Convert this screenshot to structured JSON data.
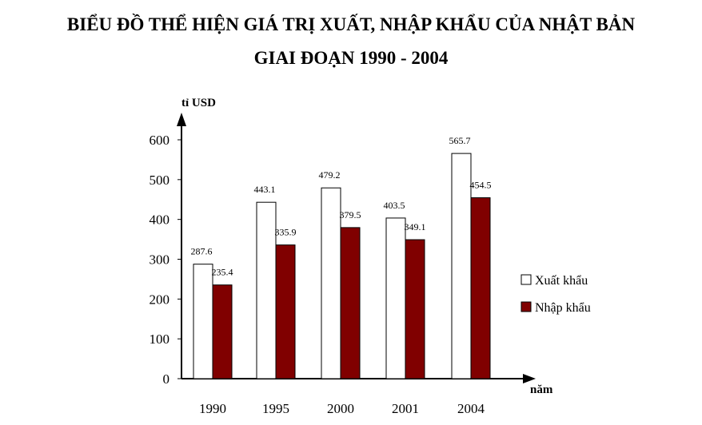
{
  "header": {
    "title_line1": "BIỂU ĐỒ THỂ HIỆN GIÁ TRỊ XUẤT, NHẬP KHẨU CỦA NHẬT BẢN",
    "title_line2": "GIAI ĐOẠN 1990 - 2004"
  },
  "chart_data": {
    "type": "bar",
    "title": "BIỂU ĐỒ THỂ HIỆN GIÁ TRỊ XUẤT, NHẬP KHẨU CỦA NHẬT BẢN GIAI ĐOẠN 1990 - 2004",
    "xlabel": "năm",
    "ylabel": "tỉ USD",
    "categories": [
      "1990",
      "1995",
      "2000",
      "2001",
      "2004"
    ],
    "ylim": [
      0,
      600
    ],
    "yticks": [
      0,
      100,
      200,
      300,
      400,
      500,
      600
    ],
    "series": [
      {
        "name": "Xuất khẩu",
        "values": [
          287.6,
          443.1,
          479.2,
          403.5,
          565.7
        ],
        "labels": [
          "287.6",
          "443.1",
          "479.2",
          "403.5",
          "565.7"
        ],
        "color": "#ffffff"
      },
      {
        "name": "Nhập khẩu",
        "values": [
          235.4,
          335.9,
          379.5,
          349.1,
          454.5
        ],
        "labels": [
          "235.4",
          "335.9",
          "379.5",
          "349.1",
          "454.5"
        ],
        "color": "#800000"
      }
    ],
    "legend_position": "right",
    "grid": false
  }
}
